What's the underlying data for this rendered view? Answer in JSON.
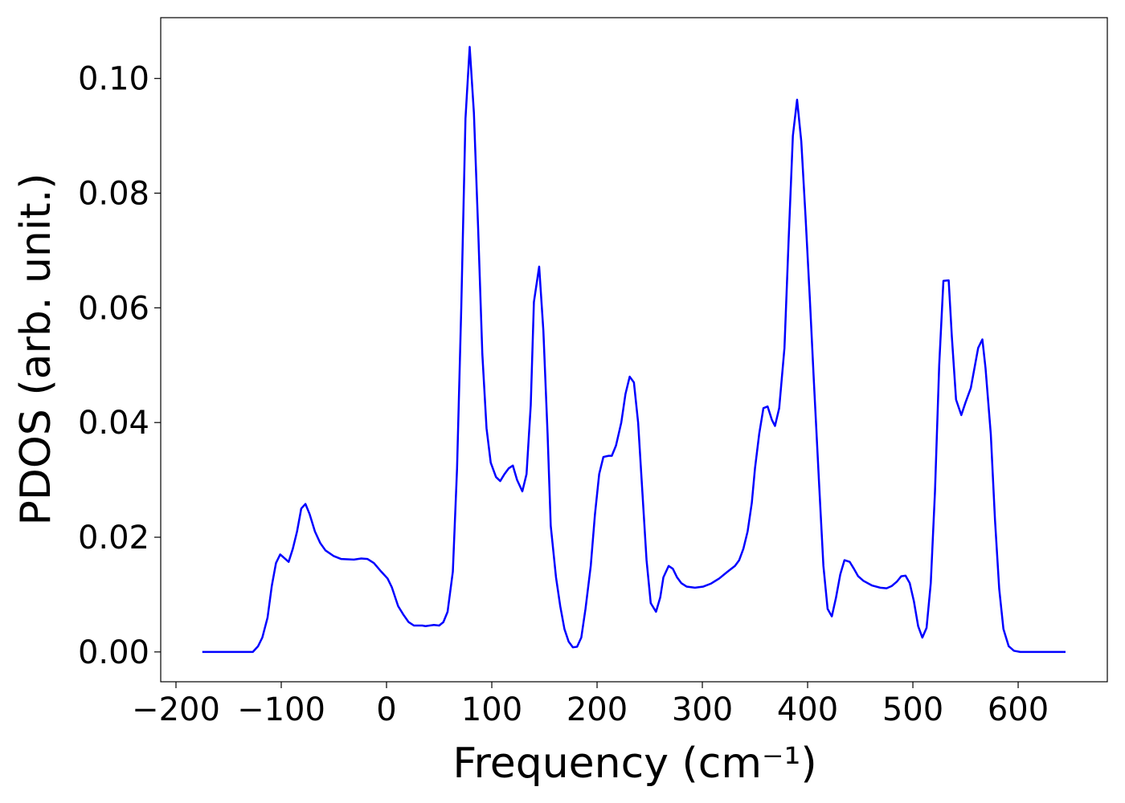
{
  "chart_data": {
    "type": "line",
    "xlabel": "Frequency (cm⁻¹)",
    "ylabel": "PDOS (arb. unit.)",
    "color": "#0000ff",
    "x": [
      -175,
      -150,
      -130,
      -127,
      -122,
      -118,
      -113,
      -109,
      -105,
      -101,
      -93,
      -89,
      -85,
      -81,
      -77,
      -73,
      -68,
      -63,
      -58,
      -50,
      -43,
      -31,
      -24,
      -18,
      -12,
      -5,
      1,
      5,
      11,
      16,
      21,
      26,
      34,
      37,
      45,
      50,
      54,
      58,
      63,
      67,
      71,
      75,
      79,
      83,
      87,
      91,
      95,
      99,
      104,
      108,
      112,
      116,
      120,
      124,
      129,
      133,
      137,
      140,
      145,
      149,
      153,
      156,
      161,
      165,
      169,
      173,
      177,
      181,
      185,
      189,
      194,
      198,
      202,
      206,
      211,
      214,
      218,
      223,
      227,
      231,
      235,
      239,
      243,
      247,
      251,
      256,
      260,
      263,
      268,
      272,
      276,
      280,
      285,
      293,
      301,
      308,
      316,
      324,
      331,
      335,
      339,
      343,
      347,
      350,
      354,
      358,
      362,
      366,
      369,
      373,
      378,
      382,
      386,
      390,
      394,
      398,
      402,
      406,
      411,
      415,
      419,
      423,
      427,
      431,
      435,
      440,
      444,
      448,
      453,
      461,
      469,
      475,
      480,
      485,
      489,
      493,
      497,
      501,
      505,
      509,
      513,
      517,
      521,
      525,
      529,
      534,
      537,
      541,
      546,
      550,
      555,
      559,
      562,
      566,
      569,
      574,
      578,
      582,
      586,
      591,
      596,
      602,
      645
    ],
    "values": [
      0,
      0,
      0,
      0,
      0.001,
      0.0025,
      0.006,
      0.0115,
      0.0155,
      0.017,
      0.0157,
      0.018,
      0.021,
      0.025,
      0.0258,
      0.024,
      0.021,
      0.019,
      0.0177,
      0.0167,
      0.0162,
      0.0161,
      0.0163,
      0.0162,
      0.0155,
      0.014,
      0.0128,
      0.0113,
      0.008,
      0.0065,
      0.0052,
      0.0046,
      0.0046,
      0.0045,
      0.0047,
      0.0046,
      0.0052,
      0.007,
      0.014,
      0.032,
      0.06,
      0.093,
      0.1055,
      0.094,
      0.074,
      0.052,
      0.039,
      0.033,
      0.0305,
      0.0298,
      0.031,
      0.032,
      0.0325,
      0.03,
      0.028,
      0.031,
      0.043,
      0.061,
      0.0672,
      0.056,
      0.038,
      0.022,
      0.013,
      0.008,
      0.004,
      0.0018,
      0.0008,
      0.0009,
      0.0025,
      0.0075,
      0.015,
      0.024,
      0.031,
      0.034,
      0.0342,
      0.0342,
      0.036,
      0.04,
      0.045,
      0.048,
      0.047,
      0.04,
      0.028,
      0.016,
      0.0085,
      0.007,
      0.0095,
      0.013,
      0.015,
      0.0145,
      0.013,
      0.012,
      0.0114,
      0.0112,
      0.0114,
      0.0119,
      0.0128,
      0.014,
      0.015,
      0.016,
      0.018,
      0.021,
      0.026,
      0.032,
      0.038,
      0.0425,
      0.0428,
      0.0405,
      0.0394,
      0.0425,
      0.053,
      0.072,
      0.09,
      0.0963,
      0.089,
      0.076,
      0.062,
      0.047,
      0.029,
      0.015,
      0.0075,
      0.0062,
      0.0095,
      0.0135,
      0.016,
      0.0157,
      0.0145,
      0.0132,
      0.0124,
      0.0116,
      0.0112,
      0.0111,
      0.0115,
      0.0123,
      0.0132,
      0.0133,
      0.012,
      0.0088,
      0.0045,
      0.0025,
      0.0042,
      0.012,
      0.028,
      0.05,
      0.0647,
      0.0648,
      0.055,
      0.044,
      0.0413,
      0.0435,
      0.046,
      0.05,
      0.053,
      0.0545,
      0.0495,
      0.038,
      0.023,
      0.011,
      0.004,
      0.001,
      0.0002,
      0,
      0
    ],
    "xlim": [
      -214.5,
      684.7
    ],
    "ylim": [
      -0.0052,
      0.1106
    ],
    "xticks": [
      {
        "value": -200,
        "label": "−200"
      },
      {
        "value": -100,
        "label": "−100"
      },
      0,
      100,
      200,
      300,
      400,
      500,
      600
    ],
    "yticks": [
      {
        "value": 0,
        "label": "0.00"
      },
      {
        "value": 0.02,
        "label": "0.02"
      },
      {
        "value": 0.04,
        "label": "0.04"
      },
      {
        "value": 0.06,
        "label": "0.06"
      },
      {
        "value": 0.08,
        "label": "0.08"
      },
      {
        "value": 0.1,
        "label": "0.10"
      }
    ],
    "grid": false
  }
}
